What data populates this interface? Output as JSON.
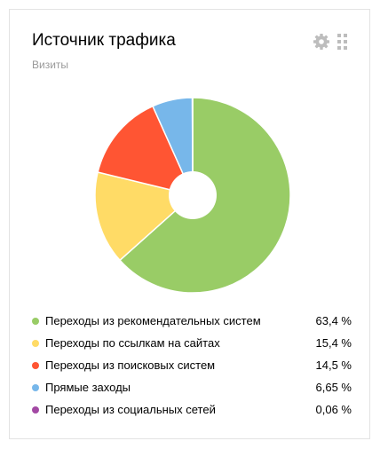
{
  "widget": {
    "title": "Источник трафика",
    "subtitle": "Визиты",
    "settings_icon": "gear-icon",
    "drag_icon": "drag-handle-icon"
  },
  "chart_data": {
    "type": "pie",
    "donut": true,
    "legend_position": "bottom",
    "categories": [
      "Переходы из рекомендательных систем",
      "Переходы по ссылкам на сайтах",
      "Переходы из поисковых систем",
      "Прямые заходы",
      "Переходы из социальных сетей"
    ],
    "values": [
      63.4,
      15.4,
      14.5,
      6.65,
      0.06
    ],
    "value_labels": [
      "63,4 %",
      "15,4 %",
      "14,5 %",
      "6,65 %",
      "0,06 %"
    ],
    "colors": [
      "#99cc66",
      "#ffdb66",
      "#ff5533",
      "#77b7ea",
      "#a349a4"
    ]
  }
}
